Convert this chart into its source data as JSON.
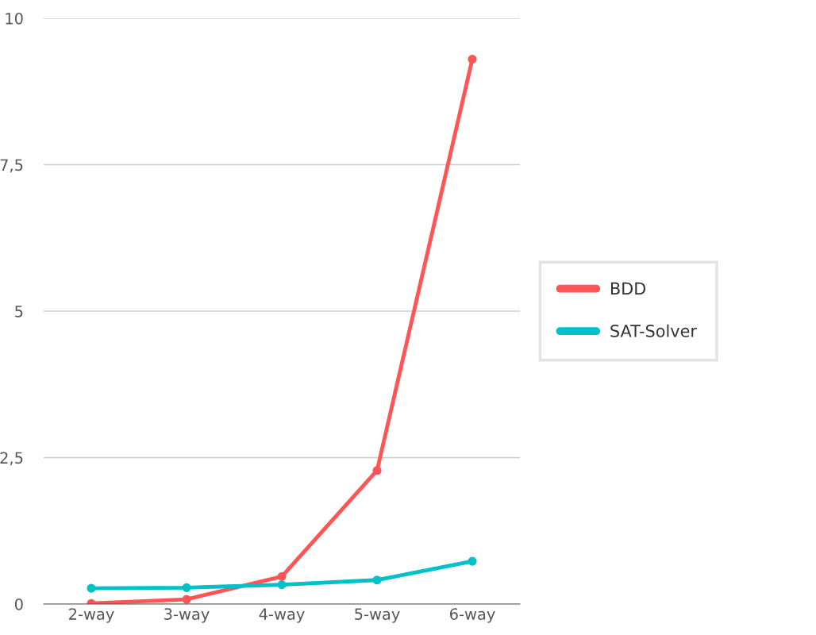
{
  "chart_data": {
    "type": "line",
    "categories": [
      "2-way",
      "3-way",
      "4-way",
      "5-way",
      "6-way"
    ],
    "series": [
      {
        "name": "BDD",
        "color": "#ff5555",
        "values": [
          0.01,
          0.08,
          0.47,
          2.28,
          9.3
        ]
      },
      {
        "name": "SAT-Solver",
        "color": "#00c0c8",
        "values": [
          0.27,
          0.28,
          0.33,
          0.41,
          0.73
        ]
      }
    ],
    "ylim": [
      0,
      10
    ],
    "yticks": [
      0,
      {
        "value": 2.5,
        "label": "2,5"
      },
      5,
      {
        "value": 7.5,
        "label": "7,5"
      },
      10
    ],
    "grid": "y",
    "legend": "right",
    "marker": "circle"
  }
}
